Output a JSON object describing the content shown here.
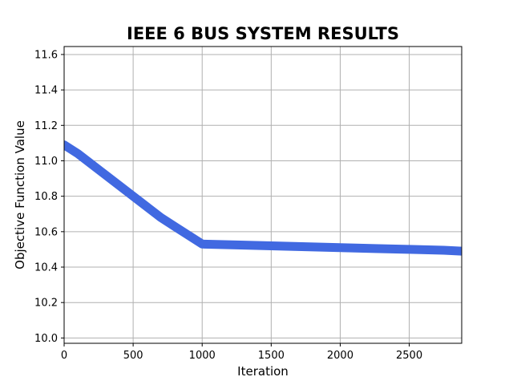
{
  "chart_data": {
    "type": "line",
    "title": "IEEE 6 BUS SYSTEM RESULTS",
    "xlabel": "Iteration",
    "ylabel": "Objective Function Value",
    "xlim": [
      0,
      2880
    ],
    "ylim": [
      9.97,
      11.645
    ],
    "xticks": [
      0,
      500,
      1000,
      1500,
      2000,
      2500
    ],
    "xtick_labels": [
      "0",
      "500",
      "1000",
      "1500",
      "2000",
      "2500"
    ],
    "yticks": [
      10.0,
      10.2,
      10.4,
      10.6,
      10.8,
      11.0,
      11.2,
      11.4,
      11.6
    ],
    "ytick_labels": [
      "10.0",
      "10.2",
      "10.4",
      "10.6",
      "10.8",
      "11.0",
      "11.2",
      "11.4",
      "11.6"
    ],
    "grid": true,
    "legend": "none",
    "series": [
      {
        "color": "#4169e1",
        "x": [
          0,
          100,
          200,
          300,
          400,
          500,
          600,
          700,
          800,
          900,
          1000,
          1250,
          1500,
          1750,
          2000,
          2250,
          2500,
          2750,
          2880
        ],
        "y": [
          11.09,
          11.04,
          10.98,
          10.92,
          10.86,
          10.8,
          10.74,
          10.68,
          10.63,
          10.58,
          10.53,
          10.525,
          10.52,
          10.515,
          10.51,
          10.505,
          10.5,
          10.495,
          10.49
        ]
      }
    ]
  }
}
